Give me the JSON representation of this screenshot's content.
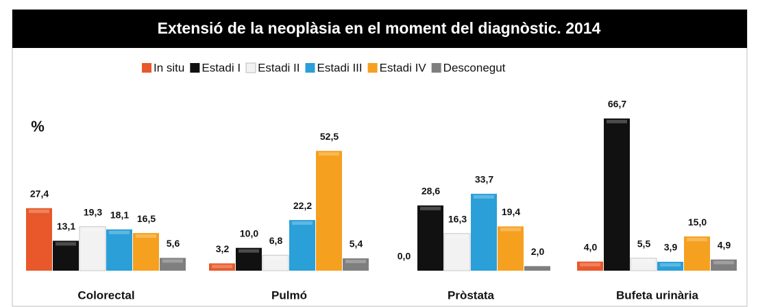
{
  "chart_data": {
    "type": "bar",
    "title": "Extensió de la neoplàsia en el moment del diagnòstic. 2014",
    "y_label": "%",
    "categories": [
      "Colorectal",
      "Pulmó",
      "Pròstata",
      "Bufeta urinària"
    ],
    "series": [
      {
        "name": "In situ",
        "color": "#e8582a",
        "values": [
          27.4,
          3.2,
          0.0,
          4.0
        ],
        "value_labels": [
          "27,4",
          "3,2",
          "0,0",
          "4,0"
        ]
      },
      {
        "name": "Estadi I",
        "color": "#111111",
        "values": [
          13.1,
          10.0,
          28.6,
          66.7
        ],
        "value_labels": [
          "13,1",
          "10,0",
          "28,6",
          "66,7"
        ]
      },
      {
        "name": "Estadi II",
        "color": "#f2f2f2",
        "values": [
          19.3,
          6.8,
          16.3,
          5.5
        ],
        "value_labels": [
          "19,3",
          "6,8",
          "16,3",
          "5,5"
        ]
      },
      {
        "name": "Estadi III",
        "color": "#2a9fd8",
        "values": [
          18.1,
          22.2,
          33.7,
          3.9
        ],
        "value_labels": [
          "18,1",
          "22,2",
          "33,7",
          "3,9"
        ]
      },
      {
        "name": "Estadi IV",
        "color": "#f6a020",
        "values": [
          16.5,
          52.5,
          19.4,
          15.0
        ],
        "value_labels": [
          "16,5",
          "52,5",
          "19,4",
          "15,0"
        ]
      },
      {
        "name": "Desconegut",
        "color": "#7f7f7f",
        "values": [
          5.6,
          5.4,
          2.0,
          4.9
        ],
        "value_labels": [
          "5,6",
          "5,4",
          "2,0",
          "4,9"
        ]
      }
    ]
  }
}
